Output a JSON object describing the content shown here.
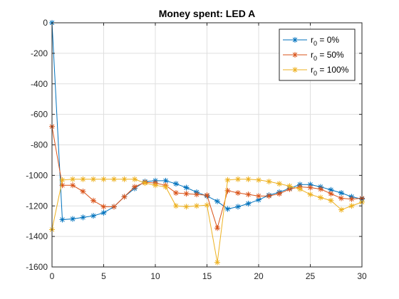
{
  "chart_data": {
    "type": "line",
    "title": "Money spent: LED A",
    "xlabel": "",
    "ylabel": "",
    "xlim": [
      0,
      30
    ],
    "ylim": [
      -1600,
      0
    ],
    "xticks": [
      0,
      5,
      10,
      15,
      20,
      25,
      30
    ],
    "yticks": [
      0,
      -200,
      -400,
      -600,
      -800,
      -1000,
      -1200,
      -1400,
      -1600
    ],
    "grid": true,
    "legend_position": "top-right",
    "x": [
      0,
      1,
      2,
      3,
      4,
      5,
      6,
      7,
      8,
      9,
      10,
      11,
      12,
      13,
      14,
      15,
      16,
      17,
      18,
      19,
      20,
      21,
      22,
      23,
      24,
      25,
      26,
      27,
      28,
      29,
      30
    ],
    "series": [
      {
        "name": "r_0 = 0%",
        "legend_base": "r",
        "legend_sub": "0",
        "legend_rest": " = 0%",
        "color": "#0072BD",
        "values": [
          0,
          -1290,
          -1285,
          -1275,
          -1265,
          -1245,
          -1205,
          -1140,
          -1085,
          -1040,
          -1035,
          -1035,
          -1055,
          -1080,
          -1110,
          -1135,
          -1170,
          -1220,
          -1205,
          -1185,
          -1160,
          -1130,
          -1110,
          -1085,
          -1060,
          -1060,
          -1075,
          -1095,
          -1115,
          -1140,
          -1155
        ]
      },
      {
        "name": "r_0 = 50%",
        "legend_base": "r",
        "legend_sub": "0",
        "legend_rest": " = 50%",
        "color": "#D95319",
        "values": [
          -680,
          -1065,
          -1065,
          -1105,
          -1165,
          -1205,
          -1205,
          -1140,
          -1075,
          -1045,
          -1050,
          -1065,
          -1115,
          -1120,
          -1125,
          -1130,
          -1345,
          -1100,
          -1115,
          -1125,
          -1135,
          -1135,
          -1120,
          -1090,
          -1075,
          -1080,
          -1090,
          -1120,
          -1150,
          -1155,
          -1150
        ]
      },
      {
        "name": "r_0 = 100%",
        "legend_base": "r",
        "legend_sub": "0",
        "legend_rest": " = 100%",
        "color": "#EDB120",
        "values": [
          -1355,
          -1030,
          -1025,
          -1025,
          -1025,
          -1025,
          -1025,
          -1025,
          -1025,
          -1050,
          -1065,
          -1075,
          -1200,
          -1205,
          -1200,
          -1195,
          -1570,
          -1030,
          -1025,
          -1025,
          -1030,
          -1040,
          -1055,
          -1070,
          -1090,
          -1125,
          -1145,
          -1165,
          -1225,
          -1200,
          -1175
        ]
      }
    ]
  }
}
